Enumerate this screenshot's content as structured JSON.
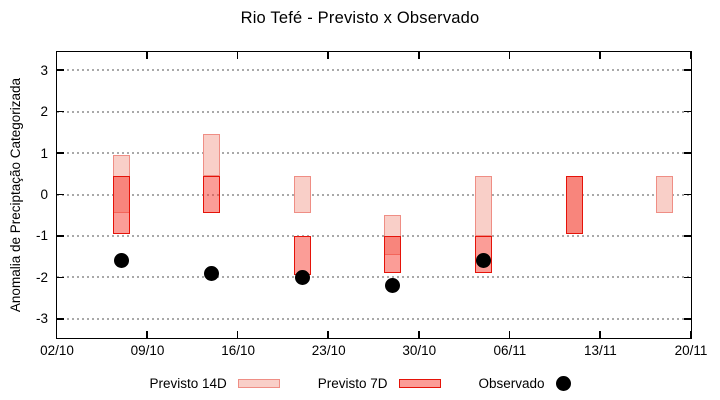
{
  "chart_data": {
    "type": "bar",
    "subtype": "range-bars-with-scatter-overlay",
    "title": "Rio Tefé - Previsto x Observado",
    "ylabel": "Anomalia de Preciptação Categorizada",
    "xlabel": "",
    "grid": "horizontal-dotted",
    "legend_position": "bottom-center",
    "xlim_days": [
      0,
      49
    ],
    "ylim": [
      -3.45,
      3.45
    ],
    "y_ticks": [
      3,
      2,
      1,
      0,
      -1,
      -2,
      -3
    ],
    "x_ticks": [
      {
        "day": 0,
        "label": "02/10"
      },
      {
        "day": 7,
        "label": "09/10"
      },
      {
        "day": 14,
        "label": "16/10"
      },
      {
        "day": 21,
        "label": "23/10"
      },
      {
        "day": 28,
        "label": "30/10"
      },
      {
        "day": 35,
        "label": "06/11"
      },
      {
        "day": 42,
        "label": "13/11"
      },
      {
        "day": 49,
        "label": "20/11"
      }
    ],
    "series": [
      {
        "name": "Previsto 14D",
        "type": "range_bar",
        "fill": "#f9cfc8",
        "border": "#ef8e85",
        "points": [
          {
            "day": 5,
            "hi": 0.95,
            "lo": -0.45
          },
          {
            "day": 12,
            "hi": 1.45,
            "lo": 0.45
          },
          {
            "day": 19,
            "hi": 0.45,
            "lo": -0.45
          },
          {
            "day": 26,
            "hi": -0.5,
            "lo": -1.45
          },
          {
            "day": 33,
            "hi": 0.45,
            "lo": -1.0
          },
          {
            "day": 40,
            "hi": 0.45,
            "lo": -0.95
          },
          {
            "day": 47,
            "hi": 0.45,
            "lo": -0.45
          }
        ]
      },
      {
        "name": "Previsto 7D",
        "type": "range_bar",
        "fill": "rgba(247,59,47,0.5)",
        "border": "#e51309",
        "points": [
          {
            "day": 5,
            "hi": 0.45,
            "lo": -0.95
          },
          {
            "day": 12,
            "hi": 0.45,
            "lo": -0.45
          },
          {
            "day": 19,
            "hi": -1.0,
            "lo": -1.95
          },
          {
            "day": 26,
            "hi": -1.0,
            "lo": -1.9
          },
          {
            "day": 33,
            "hi": -1.0,
            "lo": -1.9
          },
          {
            "day": 40,
            "hi": 0.45,
            "lo": -0.95
          }
        ]
      },
      {
        "name": "Observado",
        "type": "scatter",
        "fill": "#000000",
        "points": [
          {
            "day": 5,
            "value": -1.6
          },
          {
            "day": 12,
            "value": -1.9
          },
          {
            "day": 19,
            "value": -2.0
          },
          {
            "day": 26,
            "value": -2.2
          },
          {
            "day": 33,
            "value": -1.6
          }
        ]
      }
    ],
    "colors": {
      "axis": "#000000",
      "gridline": "#a9a9a9",
      "bar14_fill": "#f9cfc8",
      "bar14_border": "#ef8e85",
      "bar7_fill_over_white": "#fb9d97",
      "bar7_overlap_fill": "#f97d74",
      "bar7_border": "#e51309",
      "observed_dot": "#000000",
      "background": "#ffffff"
    }
  }
}
